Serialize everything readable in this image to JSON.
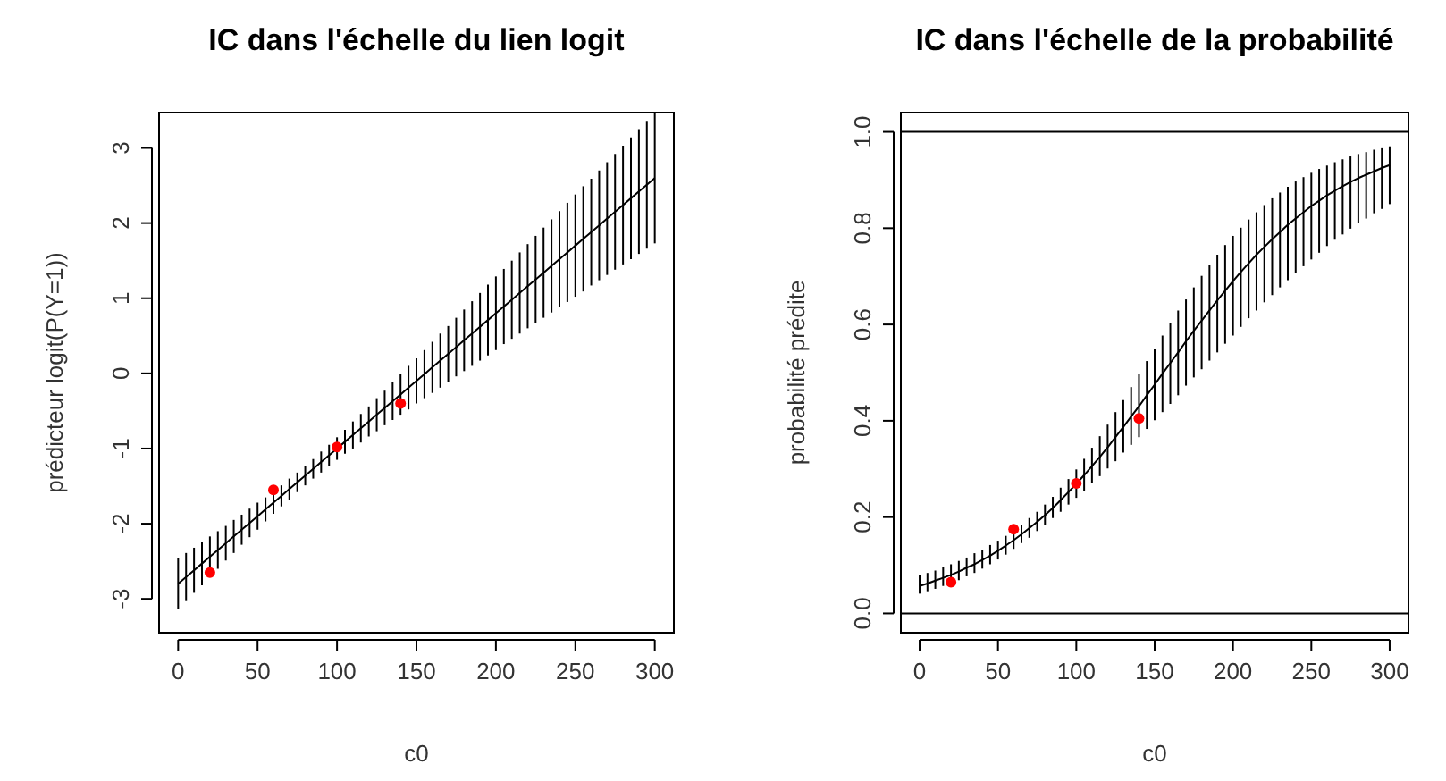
{
  "chart_data": [
    {
      "type": "line",
      "title": "IC dans l'échelle du lien logit",
      "xlabel": "c0",
      "ylabel": "prédicteur logit(P(Y=1))",
      "xlim": [
        -12,
        312
      ],
      "ylim": [
        -3.45,
        3.47
      ],
      "xticks": [
        0,
        50,
        100,
        150,
        200,
        250,
        300
      ],
      "yticks": [
        -3,
        -2,
        -1,
        0,
        1,
        2,
        3
      ],
      "grid": false,
      "series": [
        {
          "type": "line",
          "color": "#000000",
          "marker": "none",
          "line_style": "solid",
          "x": [
            0,
            5,
            10,
            15,
            20,
            25,
            30,
            35,
            40,
            45,
            50,
            55,
            60,
            65,
            70,
            75,
            80,
            85,
            90,
            95,
            100,
            105,
            110,
            115,
            120,
            125,
            130,
            135,
            140,
            145,
            150,
            155,
            160,
            165,
            170,
            175,
            180,
            185,
            190,
            195,
            200,
            205,
            210,
            215,
            220,
            225,
            230,
            235,
            240,
            245,
            250,
            255,
            260,
            265,
            270,
            275,
            280,
            285,
            290,
            295,
            300
          ],
          "values": [
            -2.8,
            -2.71,
            -2.62,
            -2.53,
            -2.44,
            -2.35,
            -2.26,
            -2.17,
            -2.08,
            -1.99,
            -1.9,
            -1.81,
            -1.72,
            -1.63,
            -1.54,
            -1.45,
            -1.36,
            -1.27,
            -1.18,
            -1.09,
            -1.0,
            -0.91,
            -0.82,
            -0.73,
            -0.64,
            -0.55,
            -0.46,
            -0.37,
            -0.28,
            -0.19,
            -0.1,
            -0.01,
            0.08,
            0.17,
            0.26,
            0.35,
            0.44,
            0.53,
            0.62,
            0.71,
            0.8,
            0.89,
            0.98,
            1.07,
            1.16,
            1.25,
            1.34,
            1.43,
            1.52,
            1.61,
            1.7,
            1.79,
            1.88,
            1.97,
            2.06,
            2.15,
            2.24,
            2.33,
            2.42,
            2.51,
            2.6
          ],
          "errors": [
            0.34,
            0.32,
            0.3,
            0.29,
            0.27,
            0.25,
            0.23,
            0.22,
            0.2,
            0.19,
            0.18,
            0.16,
            0.15,
            0.14,
            0.14,
            0.13,
            0.13,
            0.13,
            0.14,
            0.14,
            0.15,
            0.16,
            0.18,
            0.19,
            0.2,
            0.22,
            0.23,
            0.25,
            0.27,
            0.29,
            0.3,
            0.32,
            0.34,
            0.36,
            0.37,
            0.39,
            0.41,
            0.43,
            0.45,
            0.47,
            0.49,
            0.5,
            0.52,
            0.54,
            0.56,
            0.58,
            0.6,
            0.62,
            0.64,
            0.66,
            0.68,
            0.7,
            0.71,
            0.73,
            0.75,
            0.77,
            0.79,
            0.81,
            0.83,
            0.85,
            0.87
          ]
        },
        {
          "type": "scatter",
          "color": "#ff0000",
          "marker": "circle",
          "x": [
            20,
            60,
            100,
            140
          ],
          "values": [
            -2.65,
            -1.55,
            -0.98,
            -0.4
          ]
        }
      ]
    },
    {
      "type": "line",
      "title": "IC dans l'échelle de la probabilité",
      "xlabel": "c0",
      "ylabel": "probabilité prédite",
      "xlim": [
        -12,
        312
      ],
      "ylim": [
        -0.04,
        1.04
      ],
      "xticks": [
        0,
        50,
        100,
        150,
        200,
        250,
        300
      ],
      "yticks": [
        {
          "value": 0,
          "label": "0.0"
        },
        {
          "value": 0.2,
          "label": "0.2"
        },
        {
          "value": 0.4,
          "label": "0.4"
        },
        {
          "value": 0.6,
          "label": "0.6"
        },
        {
          "value": 0.8,
          "label": "0.8"
        },
        {
          "value": 1,
          "label": "1.0"
        }
      ],
      "grid": false,
      "ref_lines": [
        {
          "axis": "y",
          "value": 0,
          "color": "#000000"
        },
        {
          "axis": "y",
          "value": 1,
          "color": "#000000"
        }
      ],
      "series": [
        {
          "type": "line",
          "color": "#000000",
          "marker": "none",
          "line_style": "solid",
          "x": [
            0,
            5,
            10,
            15,
            20,
            25,
            30,
            35,
            40,
            45,
            50,
            55,
            60,
            65,
            70,
            75,
            80,
            85,
            90,
            95,
            100,
            105,
            110,
            115,
            120,
            125,
            130,
            135,
            140,
            145,
            150,
            155,
            160,
            165,
            170,
            175,
            180,
            185,
            190,
            195,
            200,
            205,
            210,
            215,
            220,
            225,
            230,
            235,
            240,
            245,
            250,
            255,
            260,
            265,
            270,
            275,
            280,
            285,
            290,
            295,
            300
          ],
          "values": [
            0.057,
            0.062,
            0.068,
            0.074,
            0.08,
            0.087,
            0.095,
            0.102,
            0.111,
            0.12,
            0.13,
            0.141,
            0.152,
            0.164,
            0.177,
            0.19,
            0.204,
            0.219,
            0.235,
            0.252,
            0.269,
            0.287,
            0.306,
            0.325,
            0.345,
            0.366,
            0.387,
            0.409,
            0.43,
            0.453,
            0.475,
            0.498,
            0.52,
            0.542,
            0.565,
            0.587,
            0.608,
            0.629,
            0.65,
            0.67,
            0.69,
            0.709,
            0.727,
            0.745,
            0.761,
            0.777,
            0.792,
            0.807,
            0.82,
            0.833,
            0.846,
            0.857,
            0.868,
            0.878,
            0.887,
            0.896,
            0.904,
            0.911,
            0.918,
            0.925,
            0.931
          ],
          "errors": [
            [
              0.041,
              0.079
            ],
            [
              0.046,
              0.084
            ],
            [
              0.051,
              0.089
            ],
            [
              0.057,
              0.096
            ],
            [
              0.062,
              0.102
            ],
            [
              0.069,
              0.109
            ],
            [
              0.077,
              0.116
            ],
            [
              0.084,
              0.125
            ],
            [
              0.093,
              0.132
            ],
            [
              0.102,
              0.142
            ],
            [
              0.112,
              0.151
            ],
            [
              0.122,
              0.161
            ],
            [
              0.134,
              0.172
            ],
            [
              0.146,
              0.184
            ],
            [
              0.157,
              0.198
            ],
            [
              0.171,
              0.211
            ],
            [
              0.184,
              0.226
            ],
            [
              0.198,
              0.242
            ],
            [
              0.211,
              0.261
            ],
            [
              0.226,
              0.279
            ],
            [
              0.24,
              0.299
            ],
            [
              0.255,
              0.321
            ],
            [
              0.27,
              0.344
            ],
            [
              0.285,
              0.368
            ],
            [
              0.301,
              0.392
            ],
            [
              0.316,
              0.418
            ],
            [
              0.334,
              0.443
            ],
            [
              0.35,
              0.47
            ],
            [
              0.366,
              0.498
            ],
            [
              0.383,
              0.524
            ],
            [
              0.401,
              0.55
            ],
            [
              0.418,
              0.577
            ],
            [
              0.435,
              0.603
            ],
            [
              0.453,
              0.629
            ],
            [
              0.473,
              0.652
            ],
            [
              0.49,
              0.677
            ],
            [
              0.507,
              0.701
            ],
            [
              0.525,
              0.723
            ],
            [
              0.542,
              0.745
            ],
            [
              0.56,
              0.765
            ],
            [
              0.577,
              0.784
            ],
            [
              0.595,
              0.801
            ],
            [
              0.613,
              0.818
            ],
            [
              0.629,
              0.833
            ],
            [
              0.646,
              0.848
            ],
            [
              0.661,
              0.862
            ],
            [
              0.677,
              0.874
            ],
            [
              0.692,
              0.886
            ],
            [
              0.707,
              0.897
            ],
            [
              0.721,
              0.906
            ],
            [
              0.735,
              0.915
            ],
            [
              0.749,
              0.923
            ],
            [
              0.763,
              0.93
            ],
            [
              0.776,
              0.937
            ],
            [
              0.787,
              0.943
            ],
            [
              0.799,
              0.949
            ],
            [
              0.81,
              0.954
            ],
            [
              0.82,
              0.958
            ],
            [
              0.831,
              0.963
            ],
            [
              0.84,
              0.966
            ],
            [
              0.85,
              0.97
            ]
          ]
        },
        {
          "type": "scatter",
          "color": "#ff0000",
          "marker": "circle",
          "x": [
            20,
            60,
            100,
            140
          ],
          "values": [
            0.065,
            0.175,
            0.27,
            0.405
          ]
        }
      ]
    }
  ]
}
